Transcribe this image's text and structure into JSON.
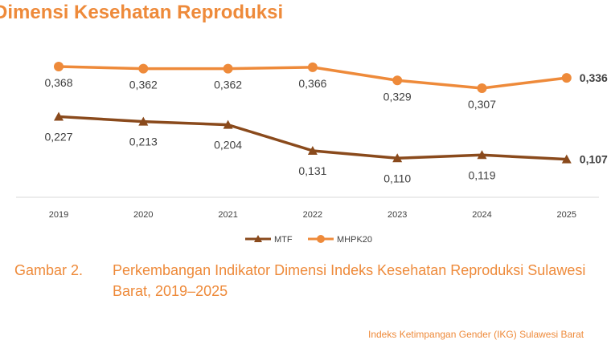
{
  "title": "Dimensi Kesehatan Reproduksi",
  "caption": {
    "label": "Gambar 2.",
    "text": "Perkembangan Indikator Dimensi Indeks Kesehatan Reproduksi Sulawesi Barat, 2019–2025"
  },
  "footer": "Indeks Ketimpangan Gender (IKG) Sulawesi Barat",
  "colors": {
    "title": "#ee8a3a",
    "mhpk20": "#ee8a3a",
    "mtf": "#8a4a1c",
    "axis": "#d9d9d9",
    "label": "#404040"
  },
  "chart_data": {
    "type": "line",
    "categories": [
      "2019",
      "2020",
      "2021",
      "2022",
      "2023",
      "2024",
      "2025"
    ],
    "series": [
      {
        "name": "MHPK20",
        "marker": "circle",
        "values": [
          0.368,
          0.362,
          0.362,
          0.366,
          0.329,
          0.307,
          0.336
        ],
        "labels": [
          "0,368",
          "0,362",
          "0,362",
          "0,366",
          "0,329",
          "0,307",
          "0,336"
        ]
      },
      {
        "name": "MTF",
        "marker": "triangle",
        "values": [
          0.227,
          0.213,
          0.204,
          0.131,
          0.11,
          0.119,
          0.107
        ],
        "labels": [
          "0,227",
          "0,213",
          "0,204",
          "0,131",
          "0,110",
          "0,119",
          "0,107"
        ]
      }
    ],
    "legend": [
      "MTF",
      "MHPK20"
    ],
    "legend_position": "bottom",
    "grid": false
  }
}
